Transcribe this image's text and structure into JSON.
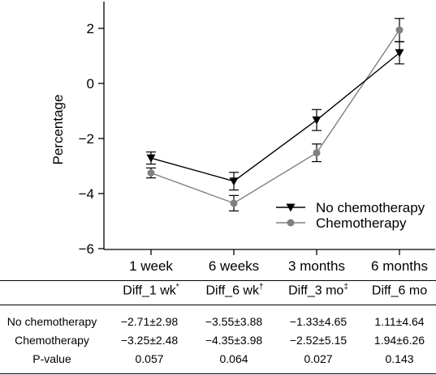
{
  "chart_data": {
    "type": "line",
    "ylabel": "Percentage",
    "xlabel": "",
    "categories": [
      "1 week",
      "6 weeks",
      "3 months",
      "6 months"
    ],
    "ylim": [
      -6,
      3
    ],
    "yticks": [
      -6,
      -4,
      -2,
      0,
      2
    ],
    "ytick_labels": [
      "−6",
      "−4",
      "−2",
      "0",
      "2"
    ],
    "series": [
      {
        "name": "No chemotherapy",
        "marker": "triangle-down",
        "color": "#000000",
        "values": [
          -2.71,
          -3.55,
          -1.33,
          1.11
        ],
        "err_low": [
          0.22,
          0.32,
          0.38,
          0.4
        ],
        "err_high": [
          0.22,
          0.32,
          0.38,
          0.4
        ]
      },
      {
        "name": "Chemotherapy",
        "marker": "circle",
        "color": "#808080",
        "values": [
          -3.25,
          -4.35,
          -2.52,
          1.94
        ],
        "err_low": [
          0.18,
          0.28,
          0.32,
          0.42
        ],
        "err_high": [
          0.18,
          0.28,
          0.32,
          0.42
        ]
      }
    ],
    "legend_position": "bottom-right"
  },
  "stats_table": {
    "headers": [
      {
        "text": "Diff_1 wk",
        "sup": "*"
      },
      {
        "text": "Diff_6 wk",
        "sup": "†"
      },
      {
        "text": "Diff_3 mo",
        "sup": "‡"
      },
      {
        "text": "Diff_6 mo",
        "sup": ""
      }
    ],
    "rows": [
      {
        "label": "No chemotherapy",
        "cells": [
          "−2.71±2.98",
          "−3.55±3.88",
          "−1.33±4.65",
          "1.11±4.64"
        ]
      },
      {
        "label": "Chemotherapy",
        "cells": [
          "−3.25±2.48",
          "−4.35±3.98",
          "−2.52±5.15",
          "1.94±6.26"
        ]
      },
      {
        "label": "P-value",
        "cells": [
          "0.057",
          "0.064",
          "0.027",
          "0.143"
        ]
      }
    ]
  }
}
